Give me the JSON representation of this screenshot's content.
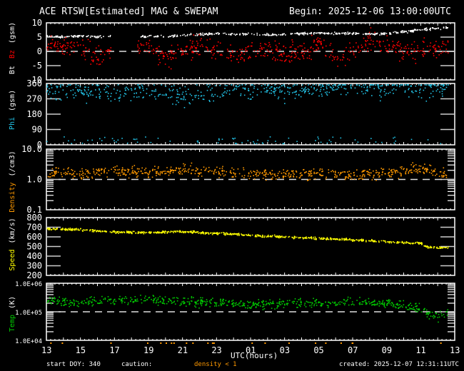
{
  "header": {
    "title": "ACE RTSW[Estimated] MAG & SWEPAM",
    "begin": "Begin: 2025-12-06 13:00:00UTC"
  },
  "footer": {
    "start_doy": "start DOY: 340",
    "caution_label": "caution:",
    "caution_value": "density < 1",
    "created": "created: 2025-12-07 12:31:11UTC",
    "x_axis_title": "UTC(hours)"
  },
  "colors": {
    "background": "#000000",
    "frame": "#ffffff",
    "bt": "#ffffff",
    "bz": "#ff0000",
    "phi": "#22c4e8",
    "density": "#ff9900",
    "speed": "#ffff00",
    "temp": "#00cc00"
  },
  "chart_data": {
    "type": "scatter",
    "title": "ACE RTSW[Estimated] MAG & SWEPAM",
    "x": {
      "label": "UTC(hours)",
      "tick_labels": [
        "13",
        "15",
        "17",
        "19",
        "21",
        "23",
        "01",
        "03",
        "05",
        "07",
        "09",
        "11",
        "13"
      ],
      "range_hours": [
        0,
        24
      ],
      "start": "2025-12-06 13:00 UTC"
    },
    "panels": [
      {
        "name": "Bt Bz",
        "ylabel": "Bt  Bz  (gsm)",
        "yticks": [
          "10",
          "5",
          "0",
          "-5",
          "-10"
        ],
        "ylim": [
          -10,
          10
        ],
        "scale": "linear",
        "reference_line": 0,
        "series": [
          {
            "name": "Bt",
            "color": "#ffffff",
            "hours": [
              0,
              1,
              2,
              3,
              3.5,
              5.5,
              6,
              7,
              8,
              9,
              10,
              11,
              12,
              13,
              14,
              15,
              16,
              17,
              18,
              19,
              20,
              21,
              22,
              23,
              23.5
            ],
            "values": [
              5.5,
              5.2,
              5.6,
              5.3,
              5.5,
              5.3,
              5.4,
              5.5,
              5.8,
              6.2,
              6.4,
              6.1,
              6.3,
              6.0,
              6.1,
              6.5,
              6.6,
              6.4,
              6.5,
              6.2,
              6.5,
              7.0,
              7.8,
              8.2,
              8.5
            ]
          },
          {
            "name": "Bz",
            "color": "#ff0000",
            "hours": [
              0,
              1,
              2,
              3,
              3.5,
              5.5,
              6,
              7,
              8,
              9,
              10,
              11,
              12,
              13,
              14,
              15,
              16,
              17,
              18,
              19,
              20,
              21,
              22,
              23,
              23.5
            ],
            "values": [
              3,
              2,
              1,
              -2,
              -1,
              2,
              1,
              -2,
              0,
              3,
              1,
              -1,
              0,
              1,
              -1,
              0,
              3,
              -2,
              0,
              4,
              2,
              0,
              0.5,
              1.5,
              2
            ]
          }
        ],
        "gap_hours": [
          3.8,
          5.3
        ]
      },
      {
        "name": "Phi",
        "ylabel": "Phi  (gsm)",
        "yticks": [
          "360",
          "270",
          "180",
          "90",
          "0"
        ],
        "ylim": [
          0,
          360
        ],
        "scale": "linear",
        "series": [
          {
            "name": "Phi",
            "color": "#22c4e8",
            "hours": [
              0,
              2,
              4,
              6,
              8,
              10,
              12,
              14,
              16,
              18,
              20,
              22,
              23.5
            ],
            "values": [
              320,
              330,
              300,
              320,
              290,
              320,
              330,
              325,
              340,
              345,
              335,
              340,
              350
            ]
          }
        ]
      },
      {
        "name": "Density",
        "ylabel": "Density  (/cm3)",
        "yticks": [
          "10.0",
          "1.0",
          "0.1"
        ],
        "ylim": [
          0.1,
          10.0
        ],
        "scale": "log",
        "reference_line": 1.0,
        "series": [
          {
            "name": "Density",
            "color": "#ff9900",
            "hours": [
              0,
              2,
              4,
              6,
              8,
              10,
              12,
              14,
              16,
              18,
              20,
              22,
              23.5
            ],
            "values": [
              1.8,
              1.6,
              1.9,
              1.7,
              2.2,
              1.8,
              1.6,
              1.5,
              1.6,
              1.5,
              1.7,
              2.4,
              1.5
            ]
          }
        ]
      },
      {
        "name": "Speed",
        "ylabel": "Speed  (km/s)",
        "yticks": [
          "800",
          "700",
          "600",
          "500",
          "400",
          "300",
          "200"
        ],
        "ylim": [
          200,
          800
        ],
        "scale": "linear",
        "series": [
          {
            "name": "Speed",
            "color": "#ffff00",
            "hours": [
              0,
              2,
              4,
              6,
              8,
              10,
              11,
              12,
              14,
              16,
              18,
              20,
              21,
              22,
              22.3,
              23,
              23.5
            ],
            "values": [
              690,
              680,
              655,
              650,
              660,
              640,
              635,
              620,
              605,
              590,
              575,
              555,
              545,
              540,
              500,
              495,
              495
            ]
          }
        ]
      },
      {
        "name": "Temp",
        "ylabel": "Temp  (K)",
        "yticks": [
          "1.0E+06",
          "1.0E+05",
          "1.0E+04"
        ],
        "ylim": [
          10000,
          1000000
        ],
        "scale": "log",
        "reference_line": 100000,
        "series": [
          {
            "name": "Temp",
            "color": "#00cc00",
            "hours": [
              0,
              2,
              4,
              6,
              8,
              10,
              12,
              14,
              16,
              18,
              20,
              21,
              22,
              22.5,
              23,
              23.5
            ],
            "values": [
              250000,
              220000,
              260000,
              270000,
              240000,
              210000,
              190000,
              210000,
              200000,
              230000,
              200000,
              180000,
              130000,
              80000,
              70000,
              80000
            ]
          }
        ]
      }
    ],
    "legend": "none",
    "grid": false
  }
}
